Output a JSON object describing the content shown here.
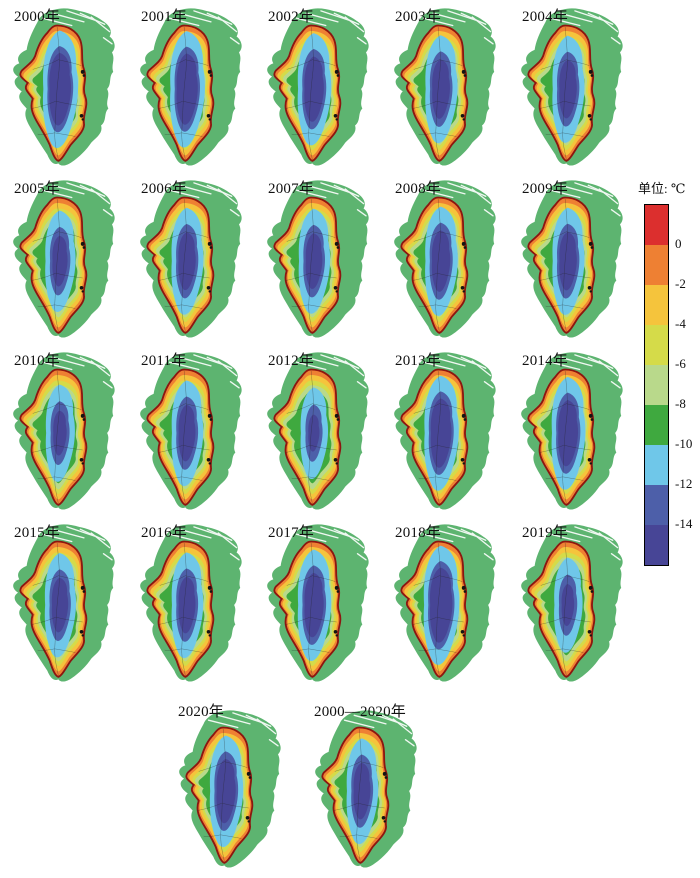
{
  "legend": {
    "title": "单位: ℃",
    "ticks": [
      "0",
      "-2",
      "-4",
      "-6",
      "-8",
      "-10",
      "-12",
      "-14"
    ],
    "segments": [
      {
        "name": "red",
        "hex": "#dc2f2e"
      },
      {
        "name": "orange",
        "hex": "#ee8033"
      },
      {
        "name": "yellow",
        "hex": "#f5c43c"
      },
      {
        "name": "yellow-green",
        "hex": "#d5db49"
      },
      {
        "name": "pale-green",
        "hex": "#b9d98b"
      },
      {
        "name": "green",
        "hex": "#3fa93f"
      },
      {
        "name": "light-blue",
        "hex": "#6fc7e9"
      },
      {
        "name": "blue",
        "hex": "#4d5fa9"
      },
      {
        "name": "navy",
        "hex": "#474596"
      }
    ]
  },
  "map_colors": {
    "land_green": "#5db470",
    "ice_margin_stroke": "#8c1610",
    "rock_black": "#141414",
    "divide_line": "#222222"
  },
  "maps": [
    {
      "label": "2000年",
      "coldness": 0.95
    },
    {
      "label": "2001年",
      "coldness": 0.92
    },
    {
      "label": "2002年",
      "coldness": 0.8
    },
    {
      "label": "2003年",
      "coldness": 0.68
    },
    {
      "label": "2004年",
      "coldness": 0.66
    },
    {
      "label": "2005年",
      "coldness": 0.5
    },
    {
      "label": "2006年",
      "coldness": 0.65
    },
    {
      "label": "2007年",
      "coldness": 0.6
    },
    {
      "label": "2008年",
      "coldness": 0.72
    },
    {
      "label": "2009年",
      "coldness": 0.66
    },
    {
      "label": "2010年",
      "coldness": 0.38
    },
    {
      "label": "2011年",
      "coldness": 0.62
    },
    {
      "label": "2012年",
      "coldness": 0.22
    },
    {
      "label": "2013年",
      "coldness": 0.88
    },
    {
      "label": "2014年",
      "coldness": 0.82
    },
    {
      "label": "2015年",
      "coldness": 0.58
    },
    {
      "label": "2016年",
      "coldness": 0.62
    },
    {
      "label": "2017年",
      "coldness": 0.78
    },
    {
      "label": "2018年",
      "coldness": 1.0
    },
    {
      "label": "2019年",
      "coldness": 0.32
    },
    {
      "label": "2020年",
      "coldness": 0.78
    },
    {
      "label": "2000—2020年",
      "coldness": 0.62
    }
  ]
}
